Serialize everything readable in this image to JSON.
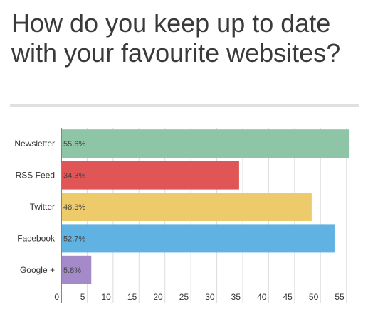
{
  "title": "How do you keep up to date with your favourite websites?",
  "chart_data": {
    "type": "bar",
    "orientation": "horizontal",
    "categories": [
      "Newsletter",
      "RSS Feed",
      "Twitter",
      "Facebook",
      "Google +"
    ],
    "values": [
      55.6,
      34.3,
      48.3,
      52.7,
      5.8
    ],
    "value_labels": [
      "55.6%",
      "34.3%",
      "48.3%",
      "52.7%",
      "5.8%"
    ],
    "colors": [
      "#8fc5a7",
      "#e05555",
      "#eecb6a",
      "#5fb2e2",
      "#a58ac9"
    ],
    "xlim": [
      0,
      56
    ],
    "xticks": [
      0,
      5,
      10,
      15,
      20,
      25,
      30,
      35,
      40,
      45,
      50,
      55
    ],
    "grid": true
  }
}
